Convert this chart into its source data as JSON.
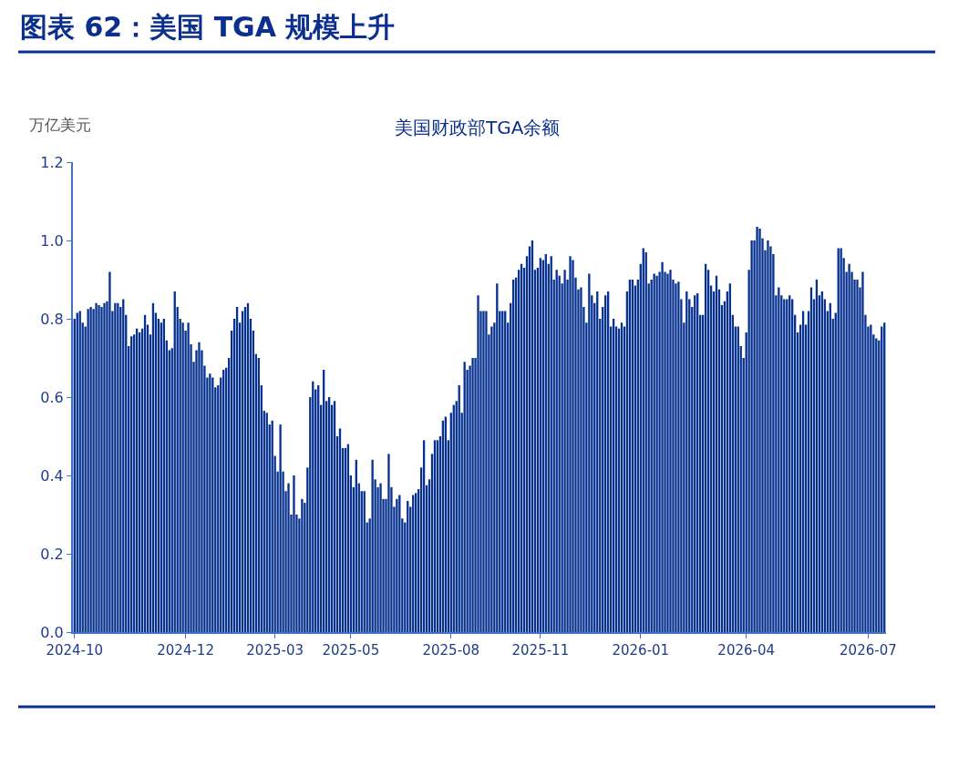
{
  "chart_data": {
    "type": "bar",
    "title": "图表 62：美国 TGA 规模上升",
    "subtitle": "美国财政部TGA余额",
    "ylabel": "万亿美元",
    "color": "#06318f",
    "ylim": [
      0,
      1.2
    ],
    "yticks": [
      {
        "value": 0,
        "label": "0.0"
      },
      {
        "value": 0.2,
        "label": "0.2"
      },
      {
        "value": 0.4,
        "label": "0.4"
      },
      {
        "value": 0.6,
        "label": "0.6"
      },
      {
        "value": 0.8,
        "label": "0.8"
      },
      {
        "value": 1.0,
        "label": "1.0"
      },
      {
        "value": 1.2,
        "label": "1.2"
      }
    ],
    "categories": [
      "2024-10",
      null,
      null,
      null,
      null,
      null,
      null,
      null,
      null,
      null,
      null,
      null,
      null,
      null,
      null,
      null,
      null,
      null,
      null,
      null,
      null,
      null,
      null,
      null,
      null,
      null,
      null,
      null,
      null,
      null,
      null,
      null,
      null,
      null,
      null,
      null,
      null,
      null,
      null,
      null,
      null,
      "2024-12",
      null,
      null,
      null,
      null,
      null,
      null,
      null,
      null,
      null,
      null,
      null,
      null,
      null,
      null,
      null,
      null,
      null,
      null,
      null,
      null,
      null,
      null,
      null,
      null,
      null,
      null,
      null,
      null,
      null,
      null,
      null,
      null,
      "2025-03",
      null,
      null,
      null,
      null,
      null,
      null,
      null,
      null,
      null,
      null,
      null,
      null,
      null,
      null,
      null,
      null,
      null,
      null,
      null,
      null,
      null,
      null,
      null,
      null,
      null,
      null,
      null,
      "2025-05",
      null,
      null,
      null,
      null,
      null,
      null,
      null,
      null,
      null,
      null,
      null,
      null,
      null,
      null,
      null,
      null,
      null,
      null,
      null,
      null,
      null,
      null,
      null,
      null,
      null,
      null,
      null,
      null,
      null,
      null,
      null,
      null,
      null,
      null,
      null,
      null,
      "2025-08",
      null,
      null,
      null,
      null,
      null,
      null,
      null,
      null,
      null,
      null,
      null,
      null,
      null,
      null,
      null,
      null,
      null,
      null,
      null,
      null,
      null,
      null,
      null,
      null,
      null,
      null,
      null,
      null,
      null,
      null,
      null,
      null,
      "2025-11",
      null,
      null,
      null,
      null,
      null,
      null,
      null,
      null,
      null,
      null,
      null,
      null,
      null,
      null,
      null,
      null,
      null,
      null,
      null,
      null,
      null,
      null,
      null,
      null,
      null,
      null,
      null,
      null,
      null,
      null,
      null,
      null,
      null,
      null,
      null,
      null,
      "2026-01",
      null,
      null,
      null,
      null,
      null,
      null,
      null,
      null,
      null,
      null,
      null,
      null,
      null,
      null,
      null,
      null,
      null,
      null,
      null,
      null,
      null,
      null,
      null,
      null,
      null,
      null,
      null,
      null,
      null,
      null,
      null,
      null,
      null,
      null,
      null,
      null,
      null,
      null,
      "2026-04",
      null,
      null,
      null,
      null,
      null,
      null,
      null,
      null,
      null,
      null,
      null,
      null,
      null,
      null,
      null,
      null,
      null,
      null,
      null,
      null,
      null,
      null,
      null,
      null,
      null,
      null,
      null,
      null,
      null,
      null,
      null,
      null,
      null,
      null,
      null,
      null,
      null,
      null,
      null,
      null,
      null,
      null,
      null,
      null,
      "2026-07",
      null,
      null,
      null,
      null,
      null,
      null
    ],
    "values": [
      0.8,
      0.815,
      0.82,
      0.79,
      0.78,
      0.825,
      0.83,
      0.825,
      0.84,
      0.835,
      0.83,
      0.84,
      0.845,
      0.92,
      0.82,
      0.84,
      0.84,
      0.83,
      0.85,
      0.81,
      0.73,
      0.755,
      0.76,
      0.775,
      0.765,
      0.775,
      0.81,
      0.785,
      0.76,
      0.84,
      0.815,
      0.8,
      0.79,
      0.8,
      0.745,
      0.72,
      0.725,
      0.87,
      0.83,
      0.8,
      0.79,
      0.77,
      0.79,
      0.735,
      0.69,
      0.72,
      0.74,
      0.72,
      0.68,
      0.65,
      0.66,
      0.65,
      0.625,
      0.63,
      0.65,
      0.67,
      0.675,
      0.7,
      0.77,
      0.8,
      0.83,
      0.79,
      0.82,
      0.83,
      0.84,
      0.8,
      0.77,
      0.71,
      0.7,
      0.63,
      0.565,
      0.56,
      0.53,
      0.54,
      0.45,
      0.41,
      0.53,
      0.41,
      0.36,
      0.38,
      0.3,
      0.4,
      0.3,
      0.29,
      0.34,
      0.33,
      0.42,
      0.6,
      0.64,
      0.62,
      0.63,
      0.58,
      0.67,
      0.59,
      0.6,
      0.58,
      0.59,
      0.5,
      0.52,
      0.47,
      0.47,
      0.48,
      0.4,
      0.37,
      0.44,
      0.38,
      0.36,
      0.36,
      0.28,
      0.29,
      0.44,
      0.39,
      0.37,
      0.38,
      0.34,
      0.34,
      0.455,
      0.37,
      0.32,
      0.34,
      0.35,
      0.29,
      0.28,
      0.335,
      0.32,
      0.35,
      0.355,
      0.365,
      0.42,
      0.49,
      0.375,
      0.39,
      0.455,
      0.49,
      0.49,
      0.5,
      0.54,
      0.55,
      0.49,
      0.56,
      0.58,
      0.59,
      0.63,
      0.56,
      0.69,
      0.67,
      0.68,
      0.7,
      0.7,
      0.86,
      0.82,
      0.82,
      0.82,
      0.76,
      0.78,
      0.79,
      0.89,
      0.82,
      0.82,
      0.82,
      0.79,
      0.84,
      0.9,
      0.905,
      0.925,
      0.94,
      0.93,
      0.96,
      0.985,
      1.0,
      0.925,
      0.93,
      0.955,
      0.95,
      0.965,
      0.94,
      0.96,
      0.9,
      0.925,
      0.91,
      0.89,
      0.925,
      0.9,
      0.96,
      0.95,
      0.905,
      0.875,
      0.88,
      0.83,
      0.79,
      0.915,
      0.86,
      0.84,
      0.87,
      0.8,
      0.83,
      0.86,
      0.87,
      0.78,
      0.8,
      0.78,
      0.775,
      0.79,
      0.78,
      0.87,
      0.9,
      0.9,
      0.885,
      0.9,
      0.94,
      0.98,
      0.97,
      0.89,
      0.9,
      0.915,
      0.91,
      0.92,
      0.945,
      0.92,
      0.915,
      0.925,
      0.9,
      0.89,
      0.895,
      0.85,
      0.79,
      0.87,
      0.85,
      0.83,
      0.86,
      0.865,
      0.81,
      0.81,
      0.94,
      0.925,
      0.885,
      0.87,
      0.91,
      0.875,
      0.835,
      0.845,
      0.87,
      0.89,
      0.81,
      0.78,
      0.78,
      0.73,
      0.7,
      0.765,
      0.925,
      1.0,
      1.0,
      1.035,
      1.03,
      1.005,
      0.975,
      1.0,
      0.985,
      0.965,
      0.86,
      0.88,
      0.86,
      0.85,
      0.85,
      0.86,
      0.85,
      0.81,
      0.765,
      0.785,
      0.82,
      0.785,
      0.82,
      0.88,
      0.85,
      0.9,
      0.86,
      0.87,
      0.85,
      0.82,
      0.84,
      0.8,
      0.815,
      0.98,
      0.98,
      0.955,
      0.92,
      0.94,
      0.92,
      0.9,
      0.9,
      0.88,
      0.92,
      0.81,
      0.78,
      0.785,
      0.76,
      0.75,
      0.745,
      0.78,
      0.79
    ]
  }
}
